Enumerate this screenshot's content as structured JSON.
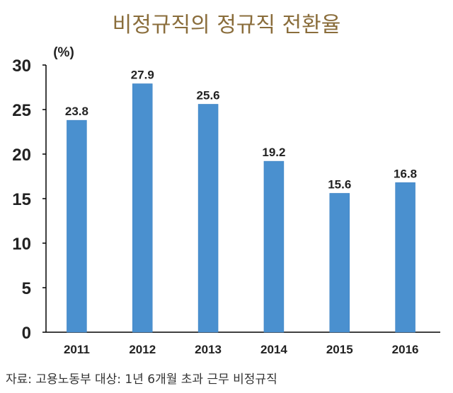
{
  "title": "비정규직의 정규직 전환율",
  "source_note": "자료: 고용노동부   대상: 1년 6개월 초과 근무 비정규직",
  "colors": {
    "bar": "#4a90cf",
    "axis": "#000000",
    "title": "#8a6d3b"
  },
  "chart_data": {
    "type": "bar",
    "title": "비정규직의 정규직 전환율",
    "unit_label": "(%)",
    "xlabel": "",
    "ylabel": "(%)",
    "categories": [
      "2011",
      "2012",
      "2013",
      "2014",
      "2015",
      "2016"
    ],
    "values": [
      23.8,
      27.9,
      25.6,
      19.2,
      15.6,
      16.8
    ],
    "data_labels": [
      "23.8",
      "27.9",
      "25.6",
      "19.2",
      "15.6",
      "16.8"
    ],
    "ylim": [
      0,
      30
    ],
    "yticks": [
      0,
      5,
      10,
      15,
      20,
      25,
      30
    ],
    "grid": false,
    "legend": null
  }
}
